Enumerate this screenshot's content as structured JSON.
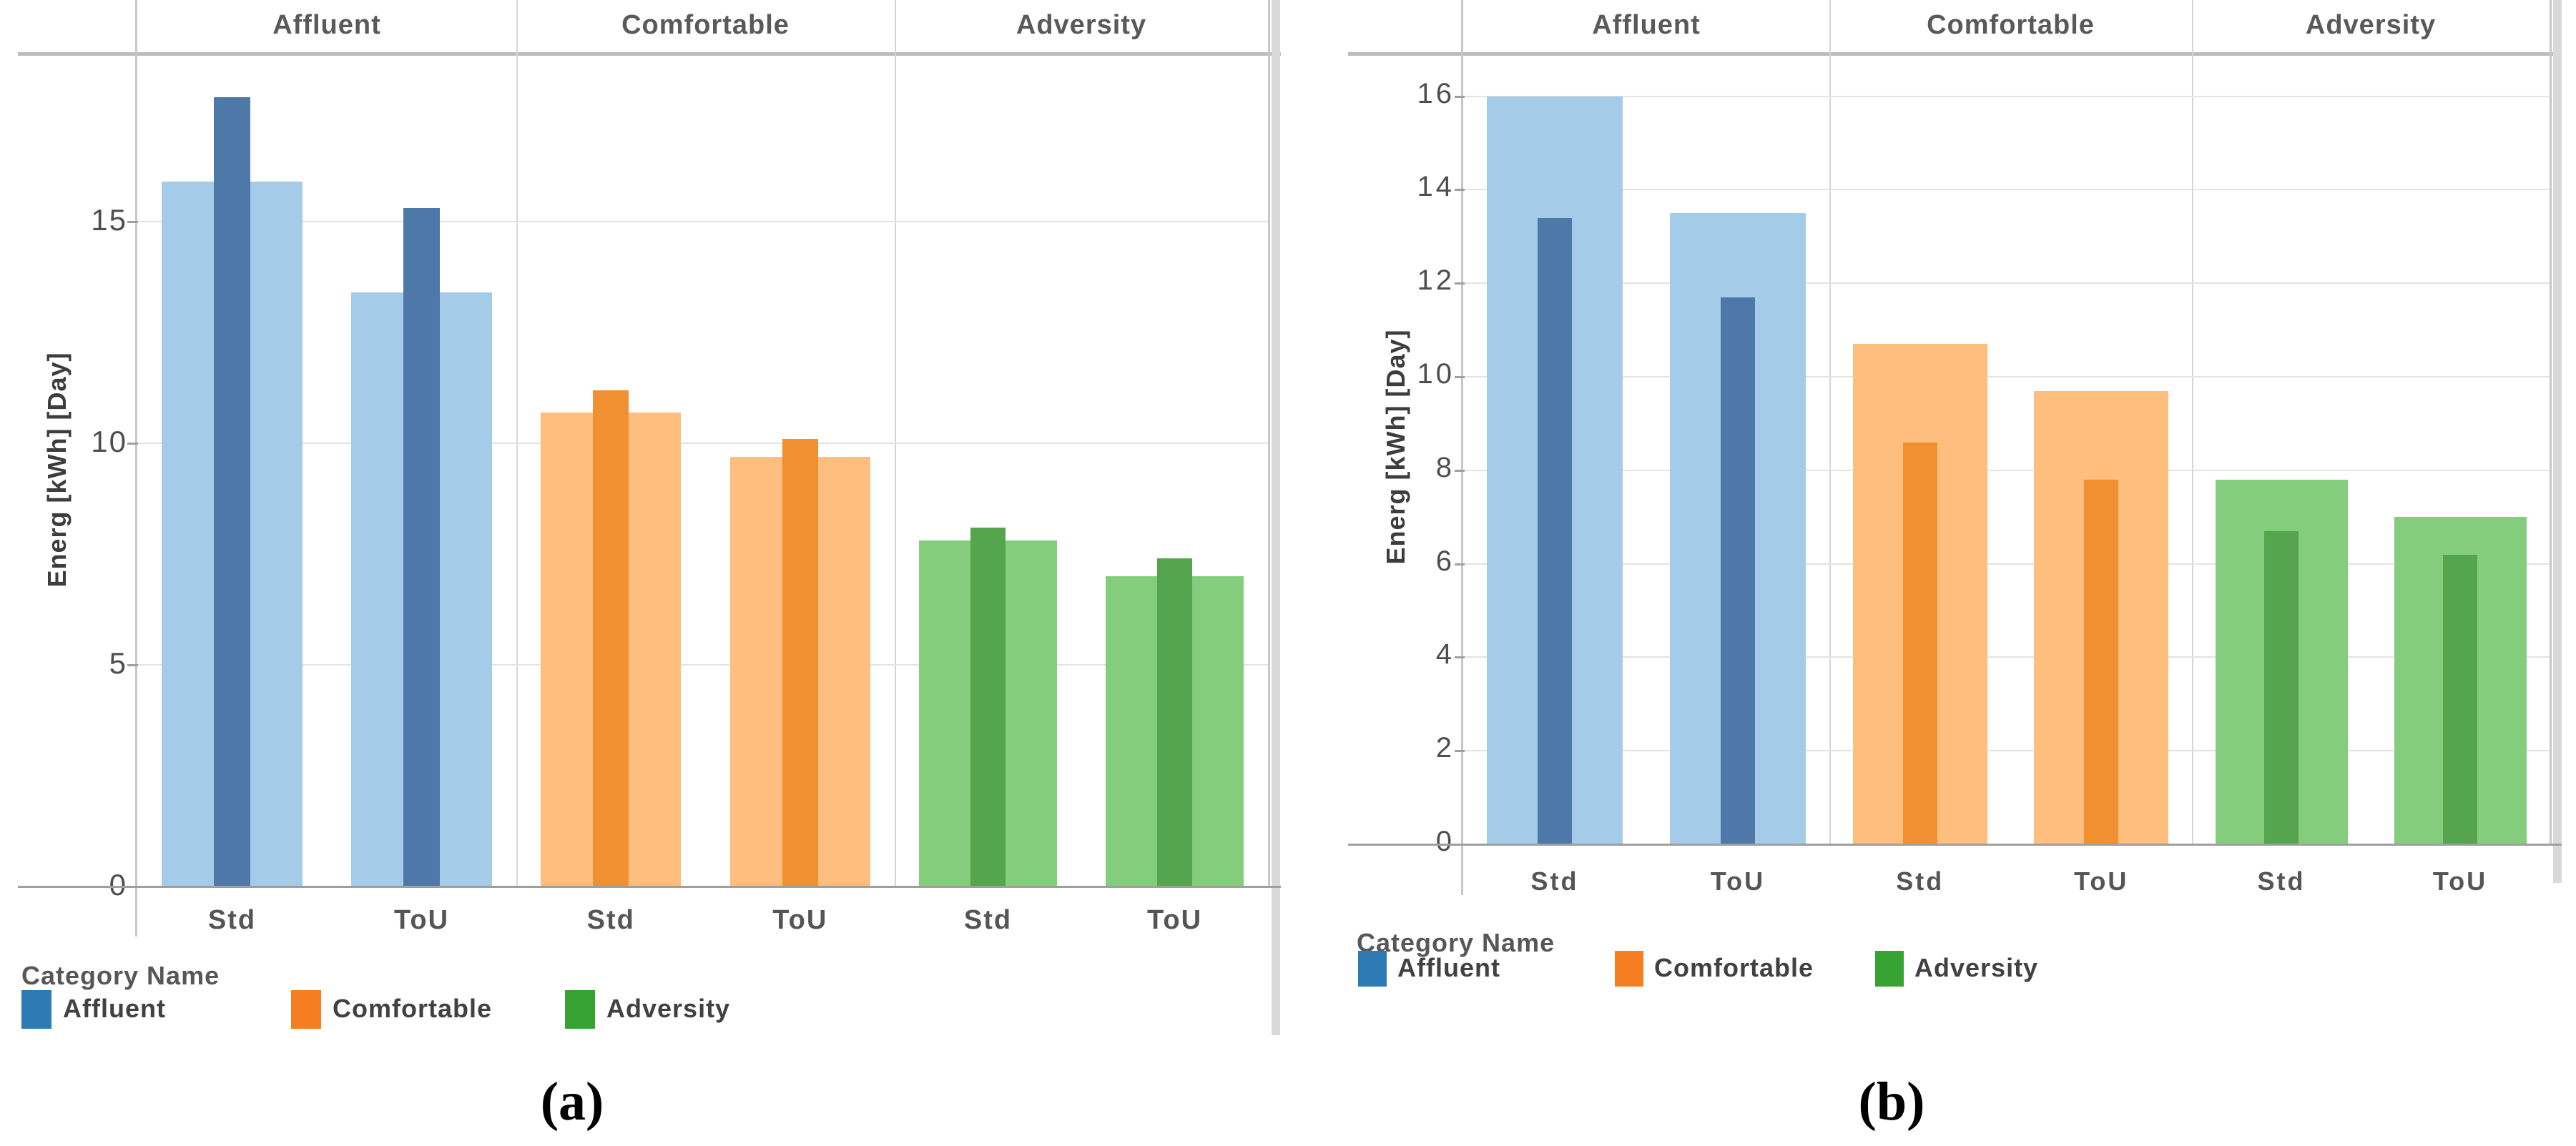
{
  "figure": {
    "captions": [
      "(a)",
      "(b)"
    ]
  },
  "palette": {
    "Affluent": {
      "light": "#a4cbe8",
      "dark": "#4d78a8",
      "legend": "#2e7ab5"
    },
    "Comfortable": {
      "light": "#fdbe7e",
      "dark": "#f09030",
      "legend": "#f57f20"
    },
    "Adversity": {
      "light": "#84cd7c",
      "dark": "#55a44e",
      "legend": "#36a333"
    }
  },
  "chart_data": [
    {
      "type": "bar",
      "title": "(a)",
      "ylabel": "Energ [kWh] [Day]",
      "ylim": [
        0,
        18.8
      ],
      "y_ticks": [
        0,
        5,
        10,
        15
      ],
      "grid": true,
      "panels": [
        "Affluent",
        "Comfortable",
        "Adversity"
      ],
      "x_tick_labels": [
        "Std",
        "ToU"
      ],
      "categories": [
        "Affluent Std",
        "Affluent ToU",
        "Comfortable Std",
        "Comfortable ToU",
        "Adversity Std",
        "Adversity ToU"
      ],
      "series": [
        {
          "name": "wide light bar",
          "values": [
            15.9,
            13.4,
            10.7,
            9.7,
            7.8,
            7.0
          ]
        },
        {
          "name": "narrow dark bar",
          "values": [
            17.8,
            15.3,
            11.2,
            10.1,
            8.1,
            7.4
          ]
        }
      ],
      "legend": {
        "title": "Category Name",
        "entries": [
          "Affluent",
          "Comfortable",
          "Adversity"
        ],
        "position": "bottom-left"
      }
    },
    {
      "type": "bar",
      "title": "(b)",
      "ylabel": "Energ [kWh] [Day]",
      "ylim": [
        0,
        16.9
      ],
      "y_ticks": [
        0,
        2,
        4,
        6,
        8,
        10,
        12,
        14,
        16
      ],
      "grid": true,
      "panels": [
        "Affluent",
        "Comfortable",
        "Adversity"
      ],
      "x_tick_labels": [
        "Std",
        "ToU"
      ],
      "categories": [
        "Affluent Std",
        "Affluent ToU",
        "Comfortable Std",
        "Comfortable ToU",
        "Adversity Std",
        "Adversity ToU"
      ],
      "series": [
        {
          "name": "wide light bar",
          "values": [
            16.0,
            13.5,
            10.7,
            9.7,
            7.8,
            7.0
          ]
        },
        {
          "name": "narrow dark bar",
          "values": [
            13.4,
            11.7,
            8.6,
            7.8,
            6.7,
            6.2
          ]
        }
      ],
      "legend": {
        "title": "Category Name",
        "entries": [
          "Affluent",
          "Comfortable",
          "Adversity"
        ],
        "position": "bottom-left"
      }
    }
  ]
}
